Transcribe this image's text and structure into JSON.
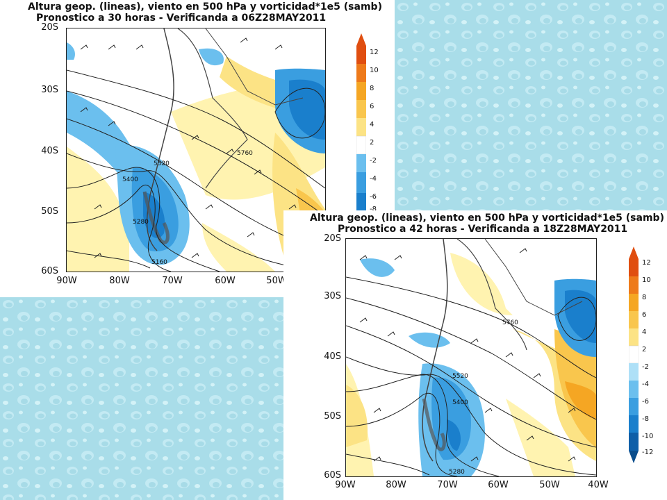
{
  "panels": [
    {
      "title_line1": "Altura geop. (lineas), viento en 500 hPa y vorticidad*1e5 (samb)",
      "title_line2": "Pronostico a 30 horas - Verificanda a 06Z28MAY2011",
      "y_ticks": [
        "20S",
        "30S",
        "40S",
        "50S",
        "60S"
      ],
      "x_ticks": [
        "90W",
        "80W",
        "70W",
        "60W",
        "50W"
      ],
      "colorbar_labels": [
        "12",
        "10",
        "8",
        "6",
        "4",
        "2",
        "-2",
        "-4",
        "-6",
        "-8"
      ],
      "contour_labels": [
        "5760",
        "5520",
        "5400",
        "5280",
        "5160"
      ]
    },
    {
      "title_line1": "Altura geop. (lineas), viento en 500 hPa y vorticidad*1e5 (samb)",
      "title_line2": "Pronostico a 42 horas - Verificanda a 18Z28MAY2011",
      "y_ticks": [
        "20S",
        "30S",
        "40S",
        "50S",
        "60S"
      ],
      "x_ticks": [
        "90W",
        "80W",
        "70W",
        "60W",
        "50W",
        "40W"
      ],
      "colorbar_labels": [
        "12",
        "10",
        "8",
        "6",
        "4",
        "2",
        "-2",
        "-4",
        "-6",
        "-8",
        "-10",
        "-12"
      ],
      "contour_labels": [
        "5760",
        "5520",
        "5400",
        "5280"
      ]
    }
  ],
  "colors": {
    "positive": [
      "#fff3b0",
      "#fce385",
      "#f9c64d",
      "#f5a623",
      "#ee7a1a",
      "#e04e10"
    ],
    "negative": [
      "#aee0f7",
      "#6bbfee",
      "#3a9ee0",
      "#1a7fcc",
      "#0f5fa8",
      "#0a4d8c"
    ],
    "background_texture": "#a6dbe8"
  }
}
